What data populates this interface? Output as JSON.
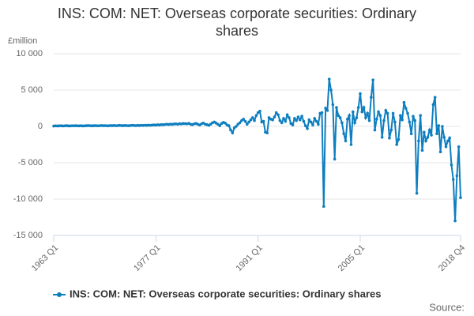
{
  "chart_data": {
    "type": "line",
    "title": "INS: COM: NET: Overseas corporate securities: Ordinary shares",
    "y_axis_label": "£million",
    "source": "Source:",
    "categories": [
      "1963 Q1",
      null,
      null,
      null,
      null,
      null,
      null,
      null,
      null,
      null,
      null,
      null,
      null,
      null,
      null,
      null,
      null,
      null,
      null,
      null,
      null,
      null,
      null,
      null,
      null,
      null,
      null,
      null,
      null,
      null,
      null,
      null,
      null,
      null,
      null,
      null,
      null,
      null,
      null,
      null,
      null,
      null,
      null,
      null,
      null,
      null,
      null,
      null,
      null,
      null,
      null,
      null,
      null,
      null,
      null,
      null,
      "1977 Q1",
      null,
      null,
      null,
      null,
      null,
      null,
      null,
      null,
      null,
      null,
      null,
      null,
      null,
      null,
      null,
      null,
      null,
      null,
      null,
      null,
      null,
      null,
      null,
      null,
      null,
      null,
      null,
      null,
      null,
      null,
      null,
      null,
      null,
      null,
      null,
      null,
      null,
      null,
      null,
      null,
      null,
      null,
      null,
      null,
      null,
      null,
      null,
      null,
      null,
      null,
      null,
      null,
      null,
      null,
      null,
      "1991 Q1",
      null,
      null,
      null,
      null,
      null,
      null,
      null,
      null,
      null,
      null,
      null,
      null,
      null,
      null,
      null,
      null,
      null,
      null,
      null,
      null,
      null,
      null,
      null,
      null,
      null,
      null,
      null,
      null,
      null,
      null,
      null,
      null,
      null,
      null,
      null,
      null,
      null,
      null,
      null,
      null,
      null,
      null,
      null,
      null,
      null,
      null,
      null,
      null,
      null,
      null,
      null,
      null,
      null,
      null,
      null,
      "2005 Q1",
      null,
      null,
      null,
      null,
      null,
      null,
      null,
      null,
      null,
      null,
      null,
      null,
      null,
      null,
      null,
      null,
      null,
      null,
      null,
      null,
      null,
      null,
      null,
      null,
      null,
      null,
      null,
      null,
      null,
      null,
      null,
      null,
      null,
      null,
      null,
      null,
      null,
      null,
      null,
      null,
      null,
      null,
      null,
      null,
      null,
      null,
      null,
      null,
      null,
      null,
      null,
      null,
      null,
      null,
      "2018 Q4"
    ],
    "series": [
      {
        "name": "INS: COM: NET: Overseas corporate securities: Ordinary shares",
        "color": "#0d7ebf",
        "values": [
          50,
          80,
          60,
          70,
          90,
          60,
          80,
          100,
          70,
          60,
          90,
          80,
          100,
          80,
          70,
          90,
          60,
          80,
          100,
          120,
          90,
          70,
          100,
          110,
          80,
          90,
          120,
          100,
          110,
          90,
          80,
          120,
          100,
          130,
          90,
          110,
          140,
          120,
          100,
          130,
          110,
          90,
          120,
          150,
          130,
          110,
          140,
          120,
          150,
          130,
          160,
          140,
          170,
          150,
          180,
          200,
          180,
          220,
          200,
          250,
          230,
          270,
          300,
          260,
          310,
          280,
          330,
          350,
          300,
          370,
          340,
          400,
          380,
          350,
          420,
          300,
          250,
          350,
          400,
          300,
          200,
          350,
          450,
          300,
          250,
          150,
          300,
          500,
          600,
          450,
          300,
          100,
          400,
          550,
          450,
          200,
          100,
          -500,
          -900,
          -200,
          0,
          300,
          500,
          800,
          1000,
          700,
          300,
          600,
          900,
          1200,
          800,
          1500,
          1900,
          2100,
          600,
          700,
          -800,
          -900,
          1200,
          1000,
          900,
          1300,
          1900,
          1600,
          800,
          500,
          1100,
          700,
          1600,
          1200,
          400,
          200,
          1100,
          800,
          1300,
          900,
          1400,
          700,
          100,
          -300,
          900,
          600,
          200,
          1100,
          700,
          300,
          1800,
          1900,
          -11000,
          2500,
          2200,
          6500,
          5000,
          3000,
          -4500,
          2600,
          1500,
          1200,
          500,
          -1000,
          -2000,
          1000,
          1500,
          -2500,
          2000,
          500,
          1200,
          2600,
          4500,
          2000,
          2600,
          1200,
          1800,
          800,
          4000,
          6400,
          -500,
          1000,
          2000,
          1500,
          -1500,
          800,
          2200,
          1800,
          -1600,
          -500,
          1800,
          600,
          -2500,
          -1800,
          1500,
          900,
          3300,
          2500,
          1800,
          600,
          -1000,
          1400,
          800,
          -9200,
          -2000,
          1500,
          -3300,
          -800,
          -2000,
          -1500,
          -500,
          -1200,
          3000,
          4000,
          -1000,
          100,
          -3500,
          0,
          -1500,
          -2800,
          -2000,
          -1600,
          -5300,
          -7300,
          -13000,
          -6800,
          -2800,
          -9800
        ]
      }
    ],
    "ylim": [
      -15000,
      10000
    ],
    "yticks": [
      {
        "value": -15000,
        "label": "-15 000"
      },
      {
        "value": -10000,
        "label": "-10 000"
      },
      {
        "value": -5000,
        "label": "-5 000"
      },
      0,
      {
        "value": 5000,
        "label": "5 000"
      },
      {
        "value": 10000,
        "label": "10 000"
      }
    ],
    "grid": true,
    "legend": "bottom"
  }
}
